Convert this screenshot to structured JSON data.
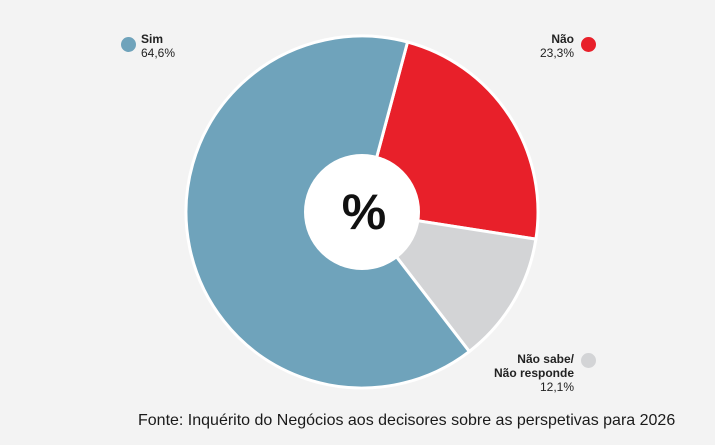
{
  "chart_data": {
    "type": "pie",
    "title": "%",
    "categories": [
      "Sim",
      "Não",
      "Não sabe/ Não responde"
    ],
    "values": [
      64.6,
      23.3,
      12.1
    ],
    "value_labels": [
      "64,6%",
      "23,3%",
      "12,1%"
    ],
    "colors": [
      "#6fa3bb",
      "#e8202a",
      "#d3d4d6"
    ],
    "legend": [
      {
        "lines": [
          "Sim"
        ],
        "value": "64,6%",
        "placement": "top-left"
      },
      {
        "lines": [
          "Não"
        ],
        "value": "23,3%",
        "placement": "top-right"
      },
      {
        "lines": [
          "Não sabe/",
          "Não responde"
        ],
        "value": "12,1%",
        "placement": "bottom-right"
      }
    ],
    "source": "Fonte: Inquérito do Negócios aos decisores sobre as perspetivas para 2026"
  }
}
